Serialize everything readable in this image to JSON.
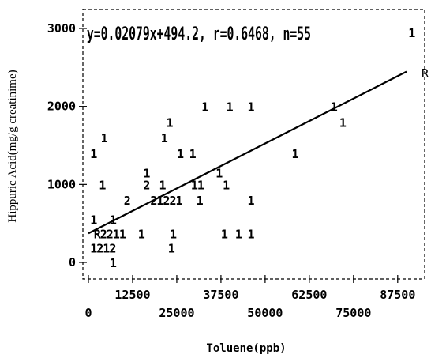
{
  "chart_data": {
    "type": "scatter",
    "title": "",
    "annotation": "y=0.02079x+494.2, r=0.6468, n=55",
    "xlabel": "Toluene(ppb)",
    "ylabel": "Hippuric Acid(mg/g creatinime)",
    "right_marker": "R",
    "xlim": [
      -3000,
      93000
    ],
    "ylim": [
      0,
      3100
    ],
    "x_ticks_upper": [
      "12500",
      "37500",
      "62500",
      "87500"
    ],
    "x_ticks_lower": [
      "0",
      "25000",
      "50000",
      "75000"
    ],
    "y_ticks": [
      "3000",
      "2000",
      "1000",
      "0"
    ],
    "grid": false,
    "regression": {
      "slope": 0.02079,
      "intercept": 494.2
    },
    "points": [
      {
        "x": 90500,
        "y": 2950,
        "label": "1"
      },
      {
        "x": 68500,
        "y": 2000,
        "label": "1"
      },
      {
        "x": 71000,
        "y": 1800,
        "label": "1"
      },
      {
        "x": 57500,
        "y": 1400,
        "label": "1"
      },
      {
        "x": 32000,
        "y": 2000,
        "label": "1"
      },
      {
        "x": 39000,
        "y": 2000,
        "label": "1"
      },
      {
        "x": 45000,
        "y": 2000,
        "label": "1"
      },
      {
        "x": 22000,
        "y": 1800,
        "label": "1"
      },
      {
        "x": 3500,
        "y": 1600,
        "label": "1"
      },
      {
        "x": 20500,
        "y": 1600,
        "label": "1"
      },
      {
        "x": 500,
        "y": 1400,
        "label": "1"
      },
      {
        "x": 25000,
        "y": 1400,
        "label": "1"
      },
      {
        "x": 28500,
        "y": 1400,
        "label": "1"
      },
      {
        "x": 36000,
        "y": 1150,
        "label": "1"
      },
      {
        "x": 15500,
        "y": 1150,
        "label": "1"
      },
      {
        "x": 3000,
        "y": 1000,
        "label": "1"
      },
      {
        "x": 15500,
        "y": 1000,
        "label": "2"
      },
      {
        "x": 20000,
        "y": 1000,
        "label": "1"
      },
      {
        "x": 29000,
        "y": 1000,
        "label": "11"
      },
      {
        "x": 38000,
        "y": 1000,
        "label": "1"
      },
      {
        "x": 10000,
        "y": 800,
        "label": "2"
      },
      {
        "x": 17500,
        "y": 800,
        "label": "21221"
      },
      {
        "x": 30500,
        "y": 800,
        "label": "1"
      },
      {
        "x": 45000,
        "y": 800,
        "label": "1"
      },
      {
        "x": 500,
        "y": 550,
        "label": "1"
      },
      {
        "x": 6000,
        "y": 550,
        "label": "1"
      },
      {
        "x": 1500,
        "y": 370,
        "label": "R2211"
      },
      {
        "x": 14000,
        "y": 370,
        "label": "1"
      },
      {
        "x": 23000,
        "y": 370,
        "label": "1"
      },
      {
        "x": 37500,
        "y": 370,
        "label": "1"
      },
      {
        "x": 41500,
        "y": 370,
        "label": "1"
      },
      {
        "x": 45000,
        "y": 370,
        "label": "1"
      },
      {
        "x": 500,
        "y": 190,
        "label": "1212"
      },
      {
        "x": 22500,
        "y": 190,
        "label": "1"
      },
      {
        "x": 6000,
        "y": 0,
        "label": "1"
      }
    ]
  }
}
